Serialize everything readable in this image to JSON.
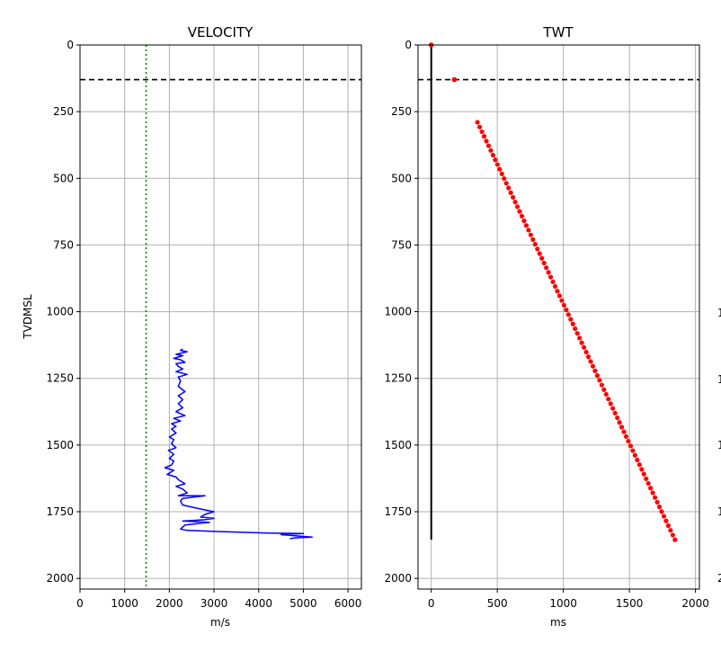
{
  "chart_data": [
    {
      "type": "line",
      "title": "VELOCITY",
      "xlabel": "m/s",
      "ylabel": "TVDMSL",
      "xlim": [
        0,
        6300
      ],
      "ylim": [
        2040,
        0
      ],
      "y_inverted": true,
      "grid": true,
      "xticks": [
        0,
        1000,
        2000,
        3000,
        4000,
        5000,
        6000
      ],
      "yticks": [
        0,
        250,
        500,
        750,
        1000,
        1250,
        1500,
        1750,
        2000
      ],
      "reference_lines": {
        "horizontal_dashed_y": 130,
        "vertical_dotted_x": 1480
      },
      "colors": {
        "series": "#0000ff",
        "hline": "#000000",
        "vline": "#008000",
        "grid": "#b0b0b0"
      },
      "series": [
        {
          "points": [
            [
              2300,
              1140
            ],
            [
              2250,
              1145
            ],
            [
              2400,
              1150
            ],
            [
              2150,
              1160
            ],
            [
              2300,
              1165
            ],
            [
              2100,
              1175
            ],
            [
              2250,
              1180
            ],
            [
              2350,
              1190
            ],
            [
              2150,
              1195
            ],
            [
              2200,
              1205
            ],
            [
              2300,
              1215
            ],
            [
              2150,
              1225
            ],
            [
              2400,
              1235
            ],
            [
              2200,
              1245
            ],
            [
              2250,
              1260
            ],
            [
              2200,
              1280
            ],
            [
              2350,
              1300
            ],
            [
              2200,
              1315
            ],
            [
              2300,
              1330
            ],
            [
              2200,
              1345
            ],
            [
              2300,
              1360
            ],
            [
              2150,
              1375
            ],
            [
              2350,
              1390
            ],
            [
              2100,
              1400
            ],
            [
              2250,
              1410
            ],
            [
              2050,
              1420
            ],
            [
              2150,
              1430
            ],
            [
              2050,
              1440
            ],
            [
              2150,
              1455
            ],
            [
              2000,
              1470
            ],
            [
              2100,
              1480
            ],
            [
              2050,
              1495
            ],
            [
              2150,
              1510
            ],
            [
              1980,
              1520
            ],
            [
              2100,
              1535
            ],
            [
              2000,
              1550
            ],
            [
              2100,
              1560
            ],
            [
              2050,
              1575
            ],
            [
              1900,
              1585
            ],
            [
              2100,
              1595
            ],
            [
              1950,
              1610
            ],
            [
              2150,
              1620
            ],
            [
              2200,
              1630
            ],
            [
              2350,
              1645
            ],
            [
              2150,
              1655
            ],
            [
              2300,
              1665
            ],
            [
              2400,
              1680
            ],
            [
              2200,
              1690
            ],
            [
              2800,
              1690
            ],
            [
              2300,
              1700
            ],
            [
              2250,
              1710
            ],
            [
              2300,
              1725
            ],
            [
              2700,
              1740
            ],
            [
              3000,
              1750
            ],
            [
              2800,
              1760
            ],
            [
              2700,
              1770
            ],
            [
              3000,
              1775
            ],
            [
              2800,
              1780
            ],
            [
              2300,
              1785
            ],
            [
              2900,
              1790
            ],
            [
              2350,
              1800
            ],
            [
              2250,
              1815
            ],
            [
              2400,
              1820
            ],
            [
              3200,
              1825
            ],
            [
              4200,
              1830
            ],
            [
              5000,
              1832
            ],
            [
              4500,
              1836
            ],
            [
              5200,
              1845
            ],
            [
              4800,
              1848
            ],
            [
              4700,
              1852
            ]
          ]
        }
      ]
    },
    {
      "type": "scatter",
      "title": "TWT",
      "xlabel": "ms",
      "xlim": [
        -100,
        2030
      ],
      "ylim": [
        2040,
        0
      ],
      "y_inverted": true,
      "grid": true,
      "xticks": [
        0,
        500,
        1000,
        1500,
        2000
      ],
      "yticks": [
        0,
        250,
        500,
        750,
        1000,
        1250,
        1500,
        1750,
        2000
      ],
      "reference_lines": {
        "horizontal_dashed_y": 130
      },
      "colors": {
        "points": "#ff0000",
        "vertical_line": "#000000",
        "grid": "#b0b0b0"
      },
      "vertical_line": {
        "x": 0,
        "y_start": 0,
        "y_end": 1855
      },
      "isolated_points": [
        [
          0,
          0
        ],
        [
          175,
          130
        ]
      ],
      "trend_points": {
        "start": [
          350,
          290
        ],
        "end": [
          1845,
          1855
        ],
        "count": 90
      }
    }
  ],
  "partial_third_panel_ticks": [
    "1",
    "1",
    "1",
    "1",
    "2"
  ]
}
